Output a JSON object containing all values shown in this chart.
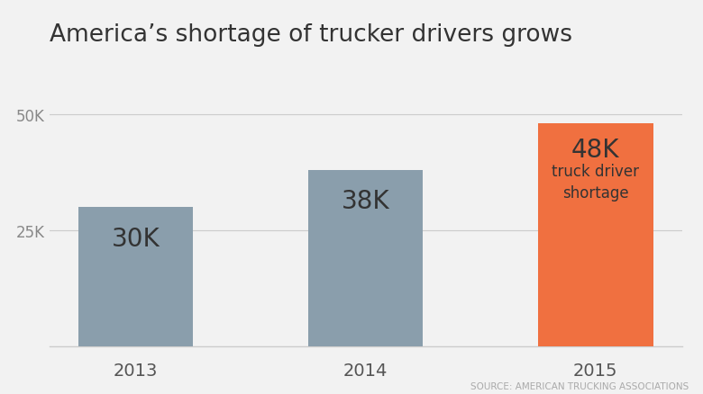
{
  "categories": [
    "2013",
    "2014",
    "2015"
  ],
  "values": [
    30000,
    38000,
    48000
  ],
  "bar_colors": [
    "#8a9eac",
    "#8a9eac",
    "#f07040"
  ],
  "bar_labels": [
    "30K",
    "38K",
    "48K"
  ],
  "bar_sublabel": "truck driver\nshortage",
  "title": "America’s shortage of trucker drivers grows",
  "title_fontsize": 19,
  "yticks": [
    25000,
    50000
  ],
  "ytick_labels": [
    "25K",
    "50K"
  ],
  "ylim": [
    0,
    56000
  ],
  "background_color": "#f2f2f2",
  "source_text": "SOURCE: AMERICAN TRUCKING ASSOCIATIONS",
  "bar_label_fontsize": 20,
  "sublabel_fontsize": 12,
  "xtick_fontsize": 14,
  "ytick_fontsize": 12,
  "source_fontsize": 7.5,
  "text_color": "#333333",
  "grid_color": "#cccccc",
  "bar_width": 0.5
}
